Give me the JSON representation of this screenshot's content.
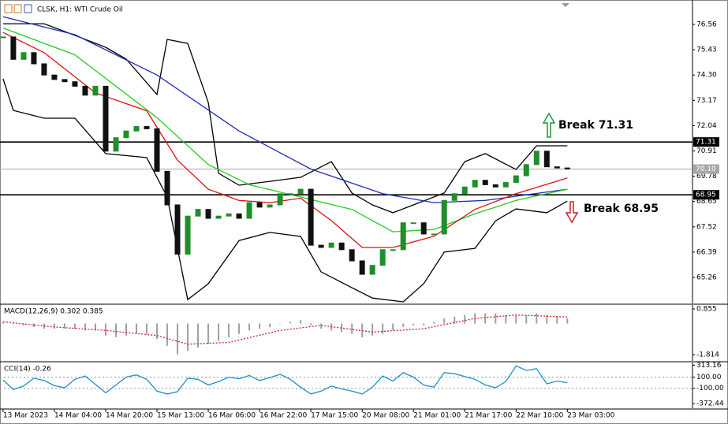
{
  "header": {
    "title": "CLSK, H1:  WTI Crude Oil"
  },
  "annotations": [
    "Break 71.31",
    "Break 68.95"
  ],
  "chart_data": [
    {
      "type": "candlestick",
      "xlim": [
        -0.3,
        67.2
      ],
      "ylim": [
        64.1,
        77.65
      ],
      "yticks": [
        76.56,
        75.43,
        {
          "value": 74.3,
          "label": "74.30"
        },
        73.17,
        72.04,
        70.91,
        69.78,
        68.65,
        67.52,
        66.39,
        65.26
      ],
      "close": [
        76.0,
        75.0,
        75.3,
        74.8,
        74.3,
        74.1,
        74.0,
        73.8,
        73.4,
        73.8,
        70.9,
        71.5,
        71.8,
        72.0,
        71.9,
        70.0,
        68.5,
        66.3,
        68.0,
        68.3,
        67.9,
        68.0,
        68.1,
        67.9,
        68.6,
        68.4,
        68.5,
        69.0,
        69.0,
        69.2,
        66.7,
        66.6,
        66.8,
        66.5,
        66.0,
        65.4,
        65.8,
        66.5,
        66.5,
        67.7,
        67.7,
        67.2,
        67.2,
        68.7,
        69.0,
        69.3,
        69.6,
        69.4,
        69.3,
        69.5,
        69.8,
        70.3,
        70.9,
        70.2,
        70.15,
        70.1
      ],
      "up_color": "#1f8f2a",
      "down_color": "#111111",
      "overlays": [
        {
          "color": "#000000",
          "x": [
            0,
            4,
            7,
            10,
            12,
            15,
            16,
            18,
            20,
            21,
            23,
            26,
            29,
            32,
            34,
            36,
            38,
            40,
            43,
            45,
            47,
            50,
            52,
            55
          ],
          "values": [
            76.59,
            76.59,
            76.07,
            75.54,
            75.01,
            73.43,
            75.89,
            75.71,
            73.07,
            69.91,
            69.38,
            69.55,
            69.73,
            70.43,
            69.03,
            68.5,
            68.15,
            68.5,
            69.03,
            70.43,
            70.79,
            70.08,
            71.14,
            71.14
          ]
        },
        {
          "color": "#000000",
          "x": [
            0,
            1,
            4,
            7,
            10,
            14,
            16,
            18,
            20,
            23,
            26,
            29,
            31,
            34,
            36,
            39,
            41,
            43,
            46,
            48,
            50,
            53,
            55
          ],
          "values": [
            74.13,
            72.72,
            72.37,
            72.37,
            70.79,
            70.61,
            68.85,
            64.27,
            64.98,
            66.91,
            67.27,
            67.09,
            65.51,
            64.8,
            64.34,
            64.17,
            64.98,
            66.39,
            66.56,
            67.79,
            68.32,
            68.15,
            68.67
          ]
        },
        {
          "color": "#1c2fb5",
          "x": [
            0,
            7,
            15,
            23,
            30,
            37,
            42,
            47,
            55
          ],
          "values": [
            76.9,
            76.1,
            74.3,
            71.8,
            70.1,
            69.0,
            68.6,
            68.7,
            69.2
          ]
        },
        {
          "color": "#22cc22",
          "x": [
            0,
            7,
            15,
            20,
            24,
            29,
            34,
            38,
            42,
            46,
            50,
            55
          ],
          "values": [
            76.4,
            75.2,
            72.4,
            70.3,
            69.4,
            68.85,
            68.3,
            67.3,
            67.4,
            68.1,
            68.7,
            69.2
          ]
        },
        {
          "color": "#dd1111",
          "x": [
            0,
            4,
            9,
            14,
            17,
            20,
            23,
            26,
            29,
            32,
            35,
            38,
            42,
            46,
            50,
            55
          ],
          "values": [
            76.2,
            75.3,
            73.5,
            72.7,
            70.5,
            69.2,
            68.7,
            68.6,
            68.8,
            67.8,
            66.6,
            66.6,
            67.1,
            68.3,
            69.0,
            69.7
          ]
        }
      ],
      "levels": [
        71.31,
        {
          "value": 70.1,
          "label": "70.10"
        },
        68.95
      ],
      "level_colors": [
        "#000000",
        "#a8a8a8",
        "#000000"
      ]
    },
    {
      "type": "macd",
      "title": "MACD(12,26,9) 0.302 0.385",
      "xlim": [
        -0.3,
        67.2
      ],
      "ylim": [
        -2.182,
        1.085
      ],
      "yticks": [
        0.855,
        -1.814
      ],
      "histogram": {
        "color": "#a0a0a0",
        "values": [
          0.1,
          0.0,
          -0.1,
          -0.2,
          -0.3,
          -0.3,
          -0.3,
          -0.3,
          -0.4,
          -0.4,
          -0.7,
          -0.8,
          -0.7,
          -0.6,
          -0.6,
          -0.9,
          -1.3,
          -1.8,
          -1.6,
          -1.4,
          -1.2,
          -1.0,
          -0.8,
          -0.6,
          -0.4,
          -0.3,
          -0.2,
          0.0,
          0.1,
          0.2,
          -0.1,
          -0.3,
          -0.4,
          -0.5,
          -0.6,
          -0.8,
          -0.7,
          -0.6,
          -0.4,
          -0.2,
          -0.1,
          -0.1,
          0.1,
          0.3,
          0.4,
          0.5,
          0.6,
          0.6,
          0.6,
          0.5,
          0.5,
          0.5,
          0.6,
          0.5,
          0.4,
          0.3
        ]
      },
      "signal": {
        "color": "#d42020",
        "x": [
          0,
          5,
          10,
          15,
          18,
          22,
          27,
          31,
          36,
          41,
          46,
          50,
          55
        ],
        "values": [
          0.1,
          -0.2,
          -0.4,
          -0.7,
          -1.2,
          -1.1,
          -0.4,
          -0.1,
          -0.5,
          -0.3,
          0.3,
          0.5,
          0.385
        ]
      }
    },
    {
      "type": "line",
      "title": "CCI(14) -0.26",
      "xlim": [
        -0.3,
        67.2
      ],
      "ylim": [
        -455,
        360
      ],
      "yticks": [
        313.16,
        {
          "value": 100,
          "label": "100.00"
        },
        {
          "value": -100,
          "label": "-100.00"
        },
        -372.44
      ],
      "levels": [
        100,
        -100
      ],
      "color": "#1e90c8",
      "values": [
        50,
        -120,
        -60,
        80,
        40,
        -50,
        -90,
        60,
        120,
        -30,
        -180,
        -40,
        100,
        140,
        60,
        -150,
        -200,
        -160,
        80,
        60,
        -40,
        20,
        100,
        70,
        130,
        40,
        90,
        150,
        60,
        -80,
        -200,
        -150,
        -60,
        -110,
        -150,
        -200,
        -80,
        120,
        30,
        180,
        100,
        -40,
        -80,
        180,
        160,
        110,
        60,
        -40,
        -90,
        20,
        300,
        220,
        250,
        -20,
        30,
        -0.26
      ],
      "xticks": [
        {
          "value": 0,
          "label": "13 Mar 2023"
        },
        {
          "value": 5,
          "label": "14 Mar 04:00"
        },
        {
          "value": 10,
          "label": "14 Mar 20:00"
        },
        {
          "value": 15,
          "label": "15 Mar 13:00"
        },
        {
          "value": 20,
          "label": "16 Mar 06:00"
        },
        {
          "value": 25,
          "label": "16 Mar 22:00"
        },
        {
          "value": 30,
          "label": "17 Mar 15:00"
        },
        {
          "value": 35,
          "label": "20 Mar 08:00"
        },
        {
          "value": 40,
          "label": "21 Mar 01:00"
        },
        {
          "value": 45,
          "label": "21 Mar 17:00"
        },
        {
          "value": 50,
          "label": "22 Mar 10:00"
        },
        {
          "value": 55,
          "label": "23 Mar 03:00"
        }
      ]
    }
  ]
}
